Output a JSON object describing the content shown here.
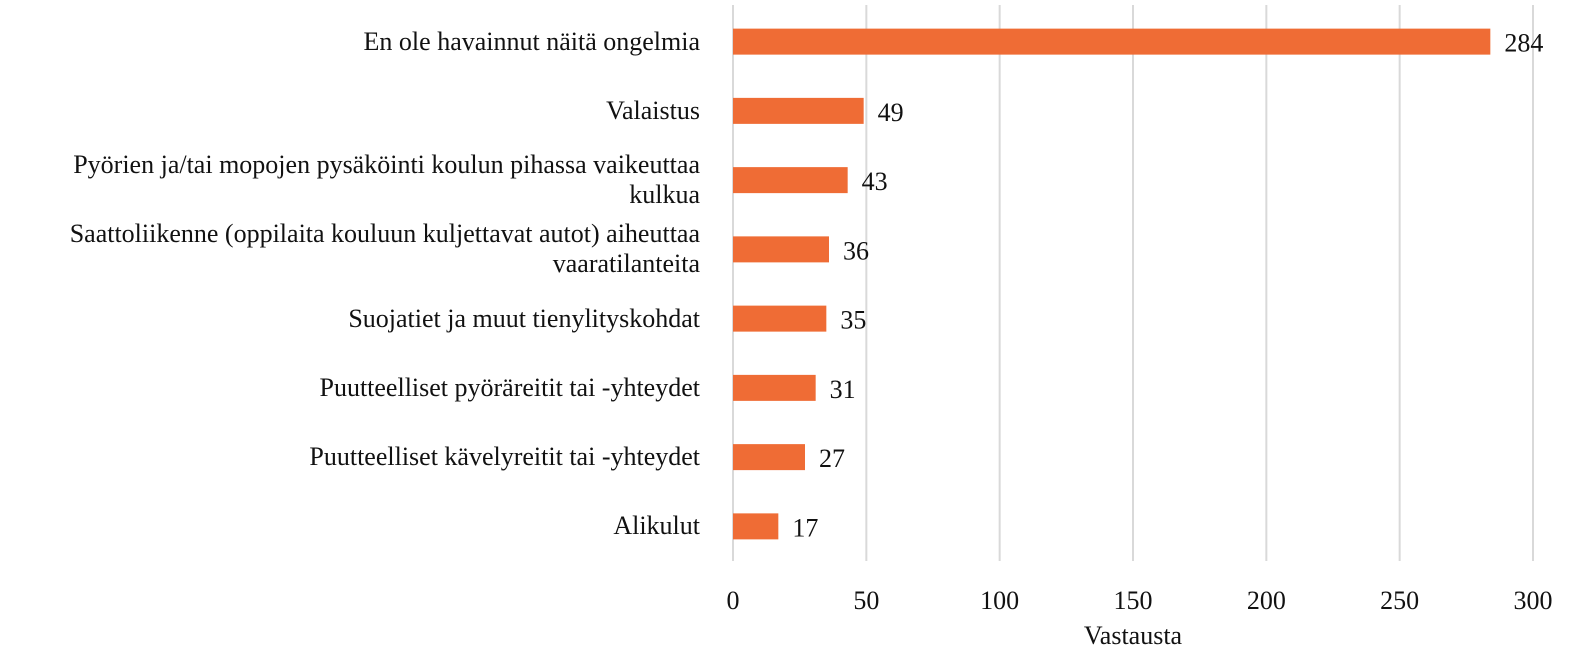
{
  "chart_data": {
    "type": "bar",
    "orientation": "horizontal",
    "categories": [
      "En ole havainnut näitä ongelmia",
      "Valaistus",
      "Pyörien ja/tai mopojen pysäköinti koulun pihassa vaikeuttaa kulkua",
      "Saattoliikenne (oppilaita kouluun kuljettavat autot) aiheuttaa vaaratilanteita",
      "Suojatiet ja muut tienylityskohdat",
      "Puutteelliset pyöräreitit tai -yhteydet",
      "Puutteelliset kävelyreitit tai -yhteydet",
      "Alikulut"
    ],
    "values": [
      284,
      49,
      43,
      36,
      35,
      31,
      27,
      17
    ],
    "color": "#ef6c35",
    "xlabel": "Vastausta",
    "xlim": [
      0,
      300
    ],
    "xticks": [
      0,
      50,
      100,
      150,
      200,
      250,
      300
    ],
    "grid": true
  }
}
